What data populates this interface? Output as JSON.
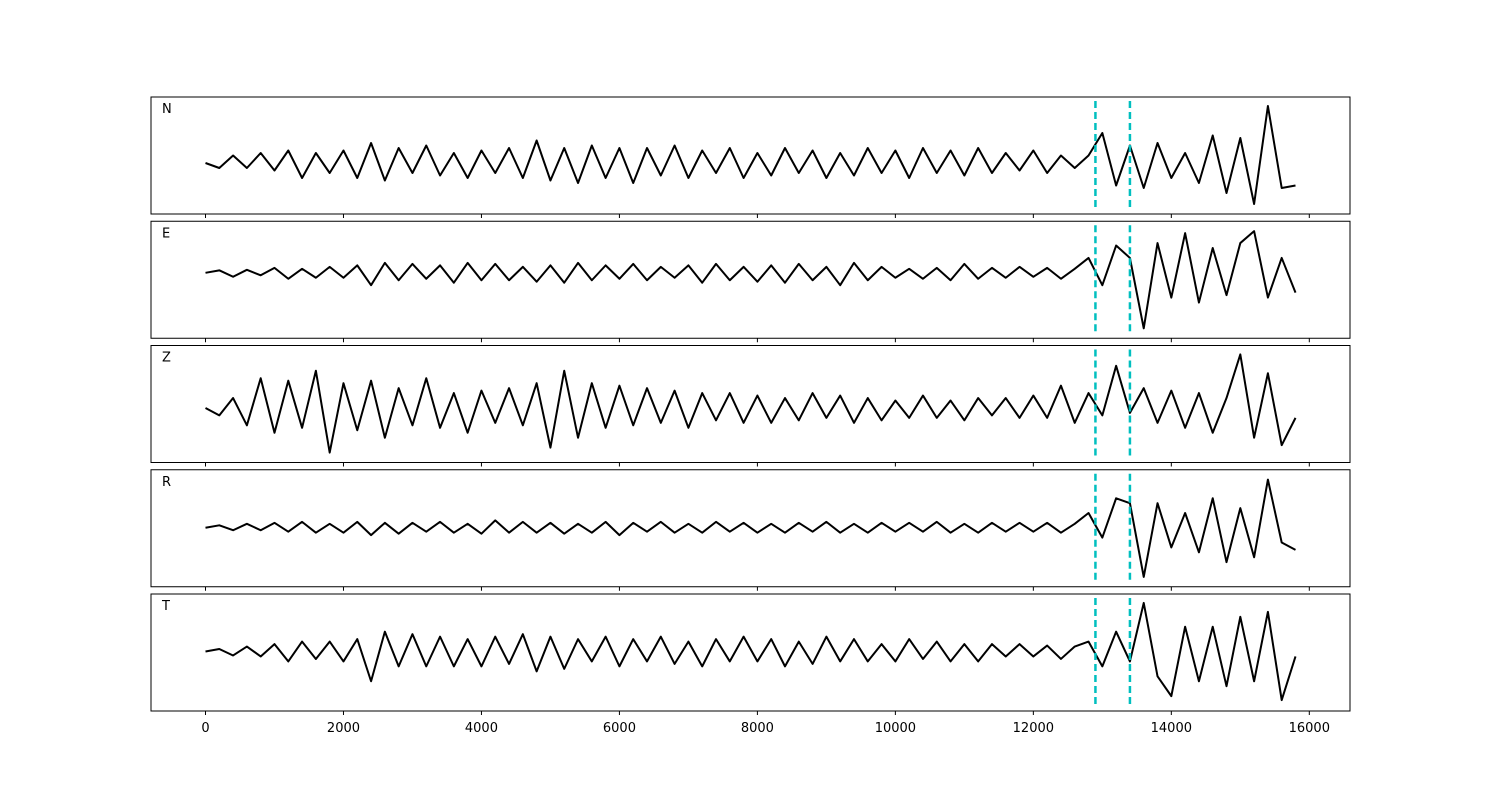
{
  "chart_data": [
    {
      "type": "line",
      "title": "N",
      "x": [
        0,
        200,
        400,
        600,
        800,
        1000,
        1200,
        1400,
        1600,
        1800,
        2000,
        2200,
        2400,
        2600,
        2800,
        3000,
        3200,
        3400,
        3600,
        3800,
        4000,
        4200,
        4400,
        4600,
        4800,
        5000,
        5200,
        5400,
        5600,
        5800,
        6000,
        6200,
        6400,
        6600,
        6800,
        7000,
        7200,
        7400,
        7600,
        7800,
        8000,
        8200,
        8400,
        8600,
        8800,
        9000,
        9200,
        9400,
        9600,
        9800,
        10000,
        10200,
        10400,
        10600,
        10800,
        11000,
        11200,
        11400,
        11600,
        11800,
        12000,
        12200,
        12400,
        12600,
        12800,
        13000,
        13200,
        13400,
        13600,
        13800,
        14000,
        14200,
        14400,
        14600,
        14800,
        15000,
        15200,
        15400,
        15600,
        15800
      ],
      "series": [
        {
          "color": "#000000",
          "values": [
            0,
            -0.1,
            0.15,
            -0.1,
            0.2,
            -0.15,
            0.25,
            -0.3,
            0.2,
            -0.2,
            0.25,
            -0.3,
            0.4,
            -0.35,
            0.3,
            -0.2,
            0.35,
            -0.25,
            0.2,
            -0.3,
            0.25,
            -0.2,
            0.3,
            -0.3,
            0.45,
            -0.35,
            0.3,
            -0.4,
            0.35,
            -0.3,
            0.3,
            -0.4,
            0.3,
            -0.25,
            0.35,
            -0.3,
            0.25,
            -0.2,
            0.3,
            -0.3,
            0.2,
            -0.25,
            0.3,
            -0.2,
            0.25,
            -0.3,
            0.2,
            -0.25,
            0.3,
            -0.2,
            0.25,
            -0.3,
            0.3,
            -0.2,
            0.25,
            -0.25,
            0.3,
            -0.2,
            0.2,
            -0.15,
            0.25,
            -0.2,
            0.15,
            -0.1,
            0.15,
            0.6,
            -0.45,
            0.35,
            -0.5,
            0.4,
            -0.3,
            0.2,
            -0.4,
            0.55,
            -0.6,
            0.5,
            -0.82,
            1.14,
            -0.5,
            -0.45
          ]
        }
      ],
      "xlim": [
        -790,
        16590
      ],
      "ylim": [
        -1.02,
        1.32
      ],
      "xticks": [
        0,
        2000,
        4000,
        6000,
        8000,
        10000,
        12000,
        14000,
        16000
      ],
      "show_xtick_labels": false,
      "vlines": [
        12900,
        13400
      ],
      "vline_color": "#00bfbf"
    },
    {
      "type": "line",
      "title": "E",
      "x": [
        0,
        200,
        400,
        600,
        800,
        1000,
        1200,
        1400,
        1600,
        1800,
        2000,
        2200,
        2400,
        2600,
        2800,
        3000,
        3200,
        3400,
        3600,
        3800,
        4000,
        4200,
        4400,
        4600,
        4800,
        5000,
        5200,
        5400,
        5600,
        5800,
        6000,
        6200,
        6400,
        6600,
        6800,
        7000,
        7200,
        7400,
        7600,
        7800,
        8000,
        8200,
        8400,
        8600,
        8800,
        9000,
        9200,
        9400,
        9600,
        9800,
        10000,
        10200,
        10400,
        10600,
        10800,
        11000,
        11200,
        11400,
        11600,
        11800,
        12000,
        12200,
        12400,
        12600,
        12800,
        13000,
        13200,
        13400,
        13600,
        13800,
        14000,
        14200,
        14400,
        14600,
        14800,
        15000,
        15200,
        15400,
        15600,
        15800
      ],
      "series": [
        {
          "color": "#000000",
          "values": [
            0,
            0.05,
            -0.08,
            0.06,
            -0.05,
            0.1,
            -0.12,
            0.08,
            -0.1,
            0.12,
            -0.1,
            0.15,
            -0.25,
            0.2,
            -0.15,
            0.18,
            -0.12,
            0.15,
            -0.2,
            0.2,
            -0.15,
            0.18,
            -0.15,
            0.12,
            -0.18,
            0.15,
            -0.2,
            0.2,
            -0.15,
            0.15,
            -0.12,
            0.18,
            -0.15,
            0.12,
            -0.1,
            0.15,
            -0.2,
            0.18,
            -0.15,
            0.12,
            -0.18,
            0.15,
            -0.2,
            0.18,
            -0.15,
            0.12,
            -0.25,
            0.2,
            -0.15,
            0.12,
            -0.1,
            0.08,
            -0.12,
            0.1,
            -0.15,
            0.18,
            -0.12,
            0.1,
            -0.1,
            0.12,
            -0.08,
            0.1,
            -0.12,
            0.08,
            0.3,
            -0.25,
            0.55,
            0.3,
            -1.12,
            0.6,
            -0.5,
            0.8,
            -0.6,
            0.5,
            -0.45,
            0.6,
            0.84,
            -0.5,
            0.3,
            -0.4
          ]
        }
      ],
      "xlim": [
        -790,
        16590
      ],
      "ylim": [
        -1.32,
        1.04
      ],
      "xticks": [
        0,
        2000,
        4000,
        6000,
        8000,
        10000,
        12000,
        14000,
        16000
      ],
      "show_xtick_labels": false,
      "vlines": [
        12900,
        13400
      ],
      "vline_color": "#00bfbf"
    },
    {
      "type": "line",
      "title": "Z",
      "x": [
        0,
        200,
        400,
        600,
        800,
        1000,
        1200,
        1400,
        1600,
        1800,
        2000,
        2200,
        2400,
        2600,
        2800,
        3000,
        3200,
        3400,
        3600,
        3800,
        4000,
        4200,
        4400,
        4600,
        4800,
        5000,
        5200,
        5400,
        5600,
        5800,
        6000,
        6200,
        6400,
        6600,
        6800,
        7000,
        7200,
        7400,
        7600,
        7800,
        8000,
        8200,
        8400,
        8600,
        8800,
        9000,
        9200,
        9400,
        9600,
        9800,
        10000,
        10200,
        10400,
        10600,
        10800,
        11000,
        11200,
        11400,
        11600,
        11800,
        12000,
        12200,
        12400,
        12600,
        12800,
        13000,
        13200,
        13400,
        13600,
        13800,
        14000,
        14200,
        14400,
        14600,
        14800,
        15000,
        15200,
        15400,
        15600,
        15800
      ],
      "series": [
        {
          "color": "#000000",
          "values": [
            0,
            -0.15,
            0.2,
            -0.35,
            0.6,
            -0.5,
            0.55,
            -0.4,
            0.75,
            -0.9,
            0.5,
            -0.45,
            0.55,
            -0.6,
            0.4,
            -0.35,
            0.6,
            -0.4,
            0.3,
            -0.5,
            0.35,
            -0.3,
            0.4,
            -0.35,
            0.5,
            -0.8,
            0.75,
            -0.6,
            0.5,
            -0.4,
            0.45,
            -0.35,
            0.4,
            -0.3,
            0.35,
            -0.4,
            0.3,
            -0.25,
            0.3,
            -0.3,
            0.25,
            -0.3,
            0.2,
            -0.25,
            0.3,
            -0.2,
            0.25,
            -0.3,
            0.2,
            -0.25,
            0.15,
            -0.2,
            0.25,
            -0.2,
            0.15,
            -0.25,
            0.2,
            -0.15,
            0.2,
            -0.2,
            0.25,
            -0.2,
            0.45,
            -0.3,
            0.3,
            -0.15,
            0.85,
            -0.1,
            0.4,
            -0.3,
            0.35,
            -0.4,
            0.3,
            -0.5,
            0.2,
            1.08,
            -0.6,
            0.7,
            -0.75,
            -0.2
          ]
        }
      ],
      "xlim": [
        -790,
        16590
      ],
      "ylim": [
        -1.1,
        1.26
      ],
      "xticks": [
        0,
        2000,
        4000,
        6000,
        8000,
        10000,
        12000,
        14000,
        16000
      ],
      "show_xtick_labels": false,
      "vlines": [
        12900,
        13400
      ],
      "vline_color": "#00bfbf"
    },
    {
      "type": "line",
      "title": "R",
      "x": [
        0,
        200,
        400,
        600,
        800,
        1000,
        1200,
        1400,
        1600,
        1800,
        2000,
        2200,
        2400,
        2600,
        2800,
        3000,
        3200,
        3400,
        3600,
        3800,
        4000,
        4200,
        4400,
        4600,
        4800,
        5000,
        5200,
        5400,
        5600,
        5800,
        6000,
        6200,
        6400,
        6600,
        6800,
        7000,
        7200,
        7400,
        7600,
        7800,
        8000,
        8200,
        8400,
        8600,
        8800,
        9000,
        9200,
        9400,
        9600,
        9800,
        10000,
        10200,
        10400,
        10600,
        10800,
        11000,
        11200,
        11400,
        11600,
        11800,
        12000,
        12200,
        12400,
        12600,
        12800,
        13000,
        13200,
        13400,
        13600,
        13800,
        14000,
        14200,
        14400,
        14600,
        14800,
        15000,
        15200,
        15400,
        15600,
        15800
      ],
      "series": [
        {
          "color": "#000000",
          "values": [
            0,
            0.05,
            -0.05,
            0.08,
            -0.05,
            0.1,
            -0.08,
            0.12,
            -0.1,
            0.08,
            -0.1,
            0.12,
            -0.15,
            0.1,
            -0.12,
            0.1,
            -0.08,
            0.12,
            -0.1,
            0.08,
            -0.12,
            0.15,
            -0.1,
            0.12,
            -0.1,
            0.1,
            -0.12,
            0.08,
            -0.1,
            0.12,
            -0.15,
            0.1,
            -0.08,
            0.12,
            -0.1,
            0.08,
            -0.1,
            0.12,
            -0.08,
            0.1,
            -0.1,
            0.08,
            -0.1,
            0.1,
            -0.08,
            0.12,
            -0.1,
            0.08,
            -0.1,
            0.1,
            -0.08,
            0.1,
            -0.08,
            0.12,
            -0.1,
            0.08,
            -0.1,
            0.1,
            -0.08,
            0.1,
            -0.08,
            0.1,
            -0.1,
            0.08,
            0.3,
            -0.2,
            0.6,
            0.5,
            -1.0,
            0.5,
            -0.4,
            0.3,
            -0.5,
            0.6,
            -0.7,
            0.4,
            -0.6,
            0.98,
            -0.3,
            -0.45
          ]
        }
      ],
      "xlim": [
        -790,
        16590
      ],
      "ylim": [
        -1.2,
        1.18
      ],
      "xticks": [
        0,
        2000,
        4000,
        6000,
        8000,
        10000,
        12000,
        14000,
        16000
      ],
      "show_xtick_labels": false,
      "vlines": [
        12900,
        13400
      ],
      "vline_color": "#00bfbf"
    },
    {
      "type": "line",
      "title": "T",
      "x": [
        0,
        200,
        400,
        600,
        800,
        1000,
        1200,
        1400,
        1600,
        1800,
        2000,
        2200,
        2400,
        2600,
        2800,
        3000,
        3200,
        3400,
        3600,
        3800,
        4000,
        4200,
        4400,
        4600,
        4800,
        5000,
        5200,
        5400,
        5600,
        5800,
        6000,
        6200,
        6400,
        6600,
        6800,
        7000,
        7200,
        7400,
        7600,
        7800,
        8000,
        8200,
        8400,
        8600,
        8800,
        9000,
        9200,
        9400,
        9600,
        9800,
        10000,
        10200,
        10400,
        10600,
        10800,
        11000,
        11200,
        11400,
        11600,
        11800,
        12000,
        12200,
        12400,
        12600,
        12800,
        13000,
        13200,
        13400,
        13600,
        13800,
        14000,
        14200,
        14400,
        14600,
        14800,
        15000,
        15200,
        15400,
        15600,
        15800
      ],
      "series": [
        {
          "color": "#000000",
          "values": [
            0,
            0.05,
            -0.08,
            0.1,
            -0.1,
            0.15,
            -0.2,
            0.2,
            -0.15,
            0.2,
            -0.2,
            0.25,
            -0.6,
            0.4,
            -0.3,
            0.35,
            -0.3,
            0.3,
            -0.3,
            0.25,
            -0.3,
            0.3,
            -0.25,
            0.35,
            -0.4,
            0.3,
            -0.35,
            0.25,
            -0.2,
            0.3,
            -0.3,
            0.25,
            -0.2,
            0.3,
            -0.25,
            0.2,
            -0.3,
            0.25,
            -0.2,
            0.3,
            -0.2,
            0.25,
            -0.3,
            0.2,
            -0.25,
            0.3,
            -0.2,
            0.25,
            -0.2,
            0.15,
            -0.2,
            0.25,
            -0.15,
            0.2,
            -0.2,
            0.15,
            -0.2,
            0.15,
            -0.1,
            0.15,
            -0.1,
            0.12,
            -0.15,
            0.1,
            0.2,
            -0.3,
            0.4,
            -0.2,
            0.98,
            -0.5,
            -0.9,
            0.5,
            -0.6,
            0.5,
            -0.7,
            0.7,
            -0.6,
            0.8,
            -0.98,
            -0.1
          ]
        }
      ],
      "xlim": [
        -790,
        16590
      ],
      "ylim": [
        -1.2,
        1.16
      ],
      "xticks": [
        0,
        2000,
        4000,
        6000,
        8000,
        10000,
        12000,
        14000,
        16000
      ],
      "show_xtick_labels": true,
      "vlines": [
        12900,
        13400
      ],
      "vline_color": "#00bfbf"
    }
  ]
}
